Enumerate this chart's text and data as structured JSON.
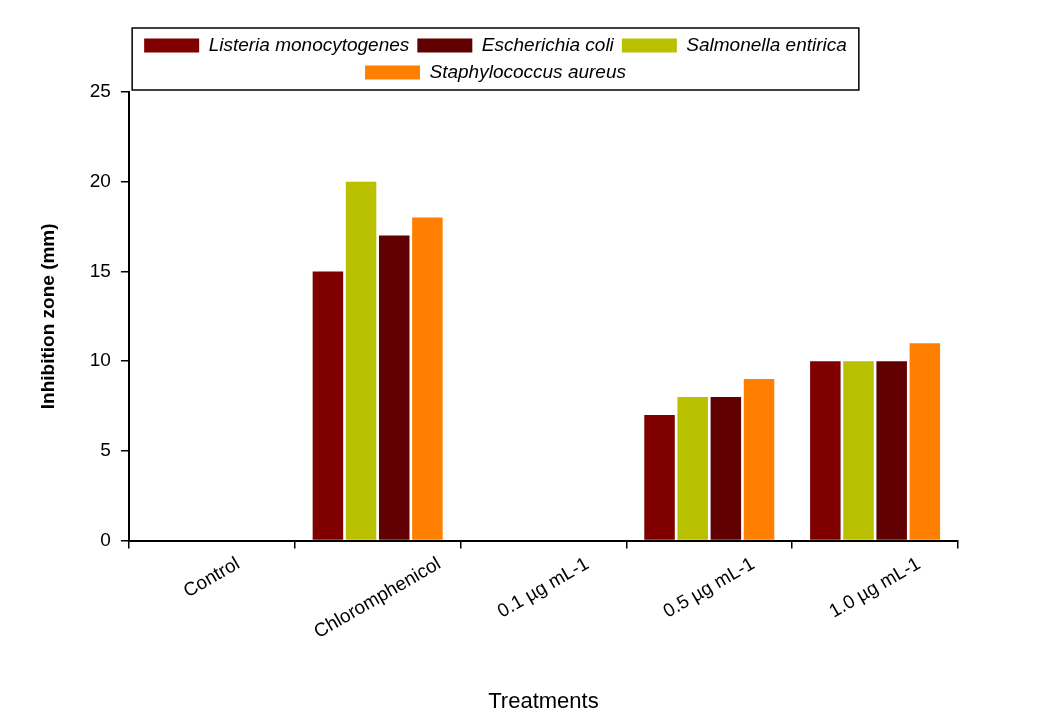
{
  "chart_data": {
    "type": "bar",
    "xlabel": "Treatments",
    "ylabel": "Inhibition zone (mm)",
    "categories": [
      "Control",
      "Chloromphenicol",
      "0.1 µg mL-1",
      "0.5 µg mL-1",
      "1.0 µg mL-1"
    ],
    "series": [
      {
        "name": "Listeria monocytogenes",
        "color": "#800000",
        "values": [
          0,
          15,
          0,
          7,
          10
        ]
      },
      {
        "name": "Salmonella entirica",
        "color": "#b8c000",
        "values": [
          0,
          20,
          0,
          8,
          10
        ]
      },
      {
        "name": "Escherichia coli",
        "color": "#600000",
        "values": [
          0,
          17,
          0,
          8,
          10
        ]
      },
      {
        "name": "Staphylococcus aureus",
        "color": "#ff8000",
        "values": [
          0,
          18,
          0,
          9,
          11
        ]
      }
    ],
    "ylim": [
      0,
      25
    ],
    "yticks": [
      0,
      5,
      10,
      15,
      20,
      25
    ],
    "grid": false,
    "legend": "top"
  }
}
